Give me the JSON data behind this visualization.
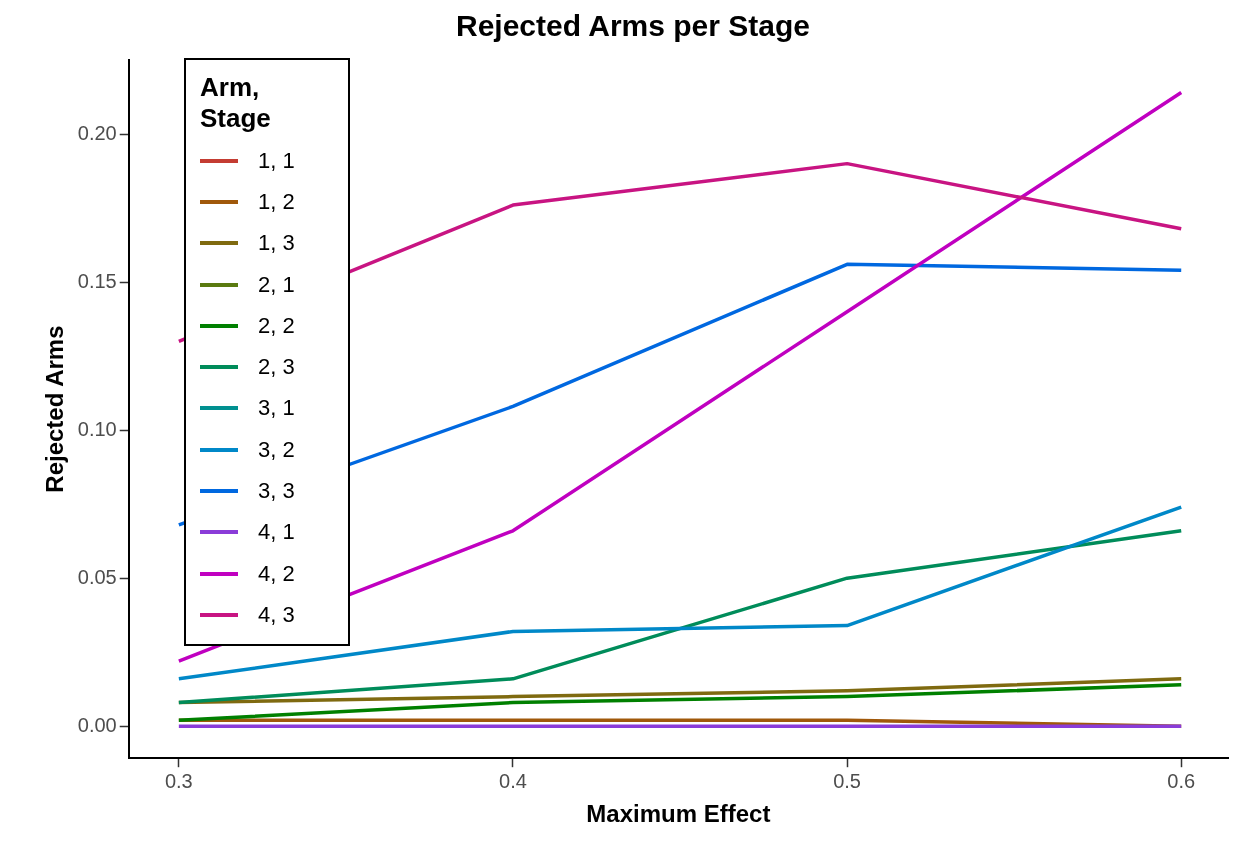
{
  "chart_data": {
    "type": "line",
    "title": "Rejected Arms per Stage",
    "xlabel": "Maximum Effect",
    "ylabel": "Rejected Arms",
    "legend_title": "Arm, Stage",
    "legend": "top left",
    "grid": false,
    "x": [
      0.3,
      0.4,
      0.5,
      0.6
    ],
    "xlim": [
      0.285,
      0.614
    ],
    "xticks": [
      0.3,
      0.4,
      0.5,
      0.6
    ],
    "ylim": [
      -0.0108,
      0.225
    ],
    "yticks": [
      {
        "value": 0,
        "label": "0.00"
      },
      {
        "value": 0.05,
        "label": "0.05"
      },
      {
        "value": 0.1,
        "label": "0.10"
      },
      {
        "value": 0.15,
        "label": "0.15"
      },
      {
        "value": 0.2,
        "label": "0.20"
      }
    ],
    "series": [
      {
        "name": "1, 1",
        "color": "#c43c32",
        "values": [
          null,
          null,
          null,
          null
        ]
      },
      {
        "name": "1, 2",
        "color": "#a0580a",
        "values": [
          0.002,
          0.002,
          0.002,
          0
        ]
      },
      {
        "name": "1, 3",
        "color": "#7f6a10",
        "values": [
          0.008,
          0.01,
          0.012,
          0.016
        ]
      },
      {
        "name": "2, 1",
        "color": "#5a7a10",
        "values": [
          null,
          null,
          null,
          null
        ]
      },
      {
        "name": "2, 2",
        "color": "#008000",
        "values": [
          0.002,
          0.008,
          0.01,
          0.014
        ]
      },
      {
        "name": "2, 3",
        "color": "#008c5a",
        "values": [
          0.008,
          0.016,
          0.05,
          0.066
        ]
      },
      {
        "name": "3, 1",
        "color": "#009090",
        "values": [
          null,
          null,
          null,
          null
        ]
      },
      {
        "name": "3, 2",
        "color": "#0088c8",
        "values": [
          0.016,
          0.032,
          0.034,
          0.074
        ]
      },
      {
        "name": "3, 3",
        "color": "#0068e0",
        "values": [
          0.068,
          0.108,
          0.156,
          0.154
        ]
      },
      {
        "name": "4, 1",
        "color": "#8a3cd8",
        "values": [
          0,
          0,
          0,
          0
        ]
      },
      {
        "name": "4, 2",
        "color": "#c000c0",
        "values": [
          0.022,
          0.066,
          0.14,
          0.214
        ]
      },
      {
        "name": "4, 3",
        "color": "#c81482",
        "values": [
          0.13,
          0.176,
          0.19,
          0.168
        ]
      }
    ]
  }
}
